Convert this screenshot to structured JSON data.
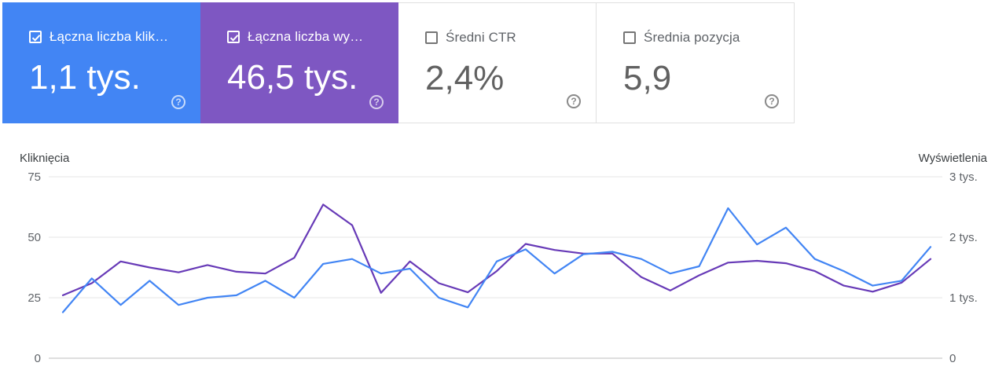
{
  "cards": [
    {
      "label": "Łączna liczba klik…",
      "value": "1,1 tys.",
      "checked": true
    },
    {
      "label": "Łączna liczba wy…",
      "value": "46,5 tys.",
      "checked": true
    },
    {
      "label": "Średni CTR",
      "value": "2,4%",
      "checked": false
    },
    {
      "label": "Średnia pozycja",
      "value": "5,9",
      "checked": false
    }
  ],
  "help_glyph": "?",
  "colors": {
    "clicks": "#4285f4",
    "impressions": "#673ab7",
    "impressions_card": "#7e57c2",
    "grid": "#e6e6e6"
  },
  "chart_data": {
    "type": "line",
    "xlabel": "",
    "ylabel_left": "Kliknięcia",
    "ylabel_right": "Wyświetlenia",
    "y_left_range": [
      0,
      75
    ],
    "y_right_range": [
      0,
      3000
    ],
    "y_left_ticks": [
      "0",
      "25",
      "50",
      "75"
    ],
    "y_right_ticks": [
      "0",
      "1 tys.",
      "2 tys.",
      "3 tys."
    ],
    "grid": true,
    "series": [
      {
        "axis": "left",
        "color": "#4285f4",
        "values": [
          19,
          33,
          22,
          32,
          22,
          25,
          26,
          32,
          25,
          39,
          41,
          35,
          37,
          25,
          21,
          40,
          45,
          35,
          43,
          44,
          41,
          35,
          38,
          62,
          47,
          54,
          41,
          36,
          30,
          32,
          46
        ]
      },
      {
        "axis": "right",
        "color": "#673ab7",
        "values": [
          1040,
          1240,
          1600,
          1500,
          1420,
          1540,
          1430,
          1400,
          1660,
          2540,
          2200,
          1080,
          1600,
          1240,
          1090,
          1440,
          1890,
          1790,
          1730,
          1730,
          1340,
          1120,
          1370,
          1580,
          1610,
          1570,
          1440,
          1200,
          1100,
          1250,
          1640
        ]
      }
    ]
  }
}
